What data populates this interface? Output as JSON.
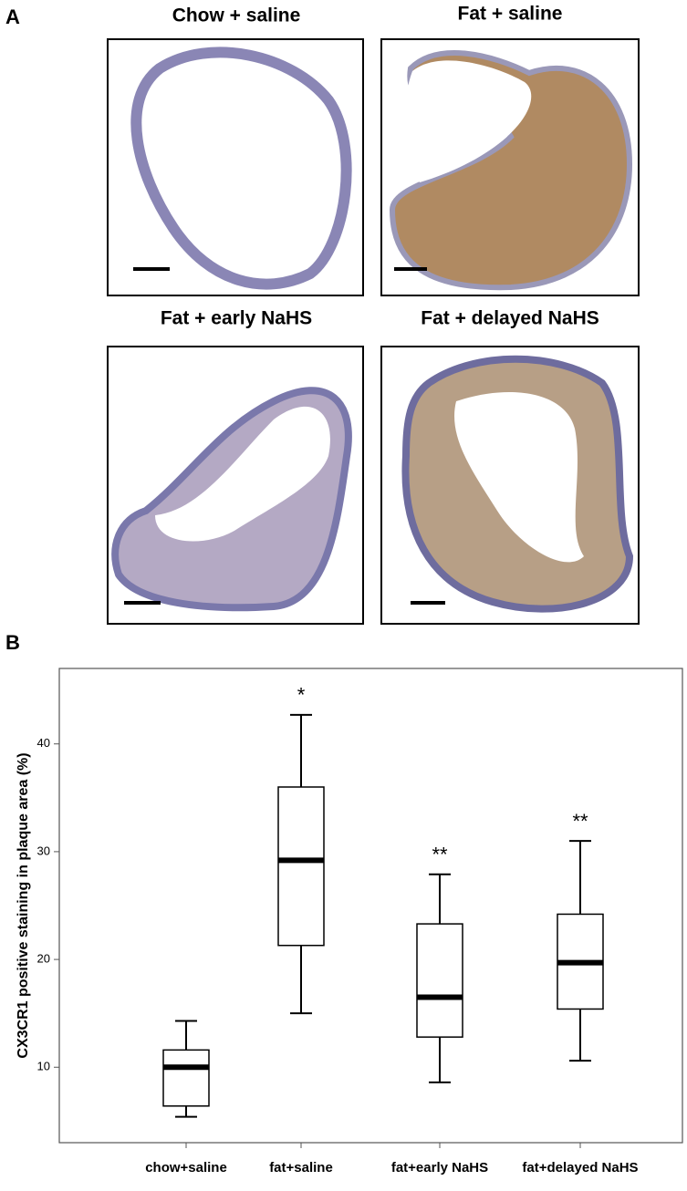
{
  "panels": [
    "A",
    "B"
  ],
  "micrographs": [
    "Chow + saline",
    "Fat + saline",
    "Fat + early NaHS",
    "Fat + delayed NaHS"
  ],
  "chart_data": {
    "type": "box",
    "y_label": "CX3CR1 positive staining in plaque area (%)",
    "categories": [
      "chow+saline",
      "fat+saline",
      "fat+early NaHS",
      "fat+delayed NaHS"
    ],
    "boxes": [
      {
        "min": 5.4,
        "q1": 6.4,
        "median": 10,
        "q3": 11.6,
        "max": 14.3
      },
      {
        "min": 15,
        "q1": 21.3,
        "median": 29.2,
        "q3": 36,
        "max": 42.7
      },
      {
        "min": 8.6,
        "q1": 12.8,
        "median": 16.5,
        "q3": 23.3,
        "max": 27.9
      },
      {
        "min": 10.6,
        "q1": 15.4,
        "median": 19.7,
        "q3": 24.2,
        "max": 31
      }
    ],
    "annotations": [
      null,
      "*",
      "**",
      "**"
    ],
    "ylim": [
      3,
      47
    ],
    "yticks": [
      10,
      20,
      30,
      40
    ],
    "color": "#ffffff"
  }
}
